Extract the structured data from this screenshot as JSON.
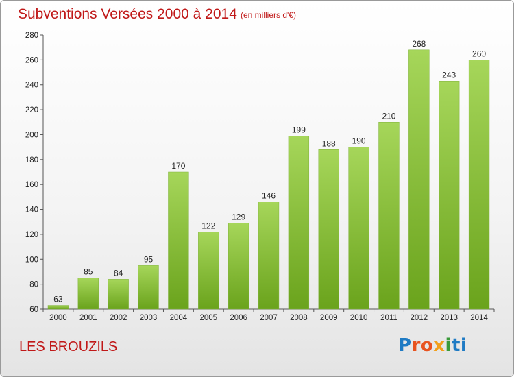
{
  "title": "Subventions Versées 2000 à 2014",
  "subtitle": "(en milliers d'€)",
  "commune": "LES BROUZILS",
  "logo": {
    "text": "Proxiti",
    "colors": [
      "#1f7bc4",
      "#e8531f",
      "#f2a01c",
      "#3a9a3a",
      "#1f7bc4"
    ]
  },
  "chart_data": {
    "type": "bar",
    "title": "Subventions Versées 2000 à 2014",
    "subtitle": "(en milliers d'€)",
    "xlabel": "",
    "ylabel": "",
    "categories": [
      "2000",
      "2001",
      "2002",
      "2003",
      "2004",
      "2005",
      "2006",
      "2007",
      "2008",
      "2009",
      "2010",
      "2011",
      "2012",
      "2013",
      "2014"
    ],
    "values": [
      63,
      85,
      84,
      95,
      170,
      122,
      129,
      146,
      199,
      188,
      190,
      210,
      268,
      243,
      260
    ],
    "ylim": [
      60,
      280
    ],
    "yticks": [
      60,
      80,
      100,
      120,
      140,
      160,
      180,
      200,
      220,
      240,
      260,
      280
    ],
    "grid": false,
    "legend": "none",
    "bar_color_light": "#a6d65a",
    "bar_color_dark": "#6aa31c",
    "data_labels": true
  }
}
